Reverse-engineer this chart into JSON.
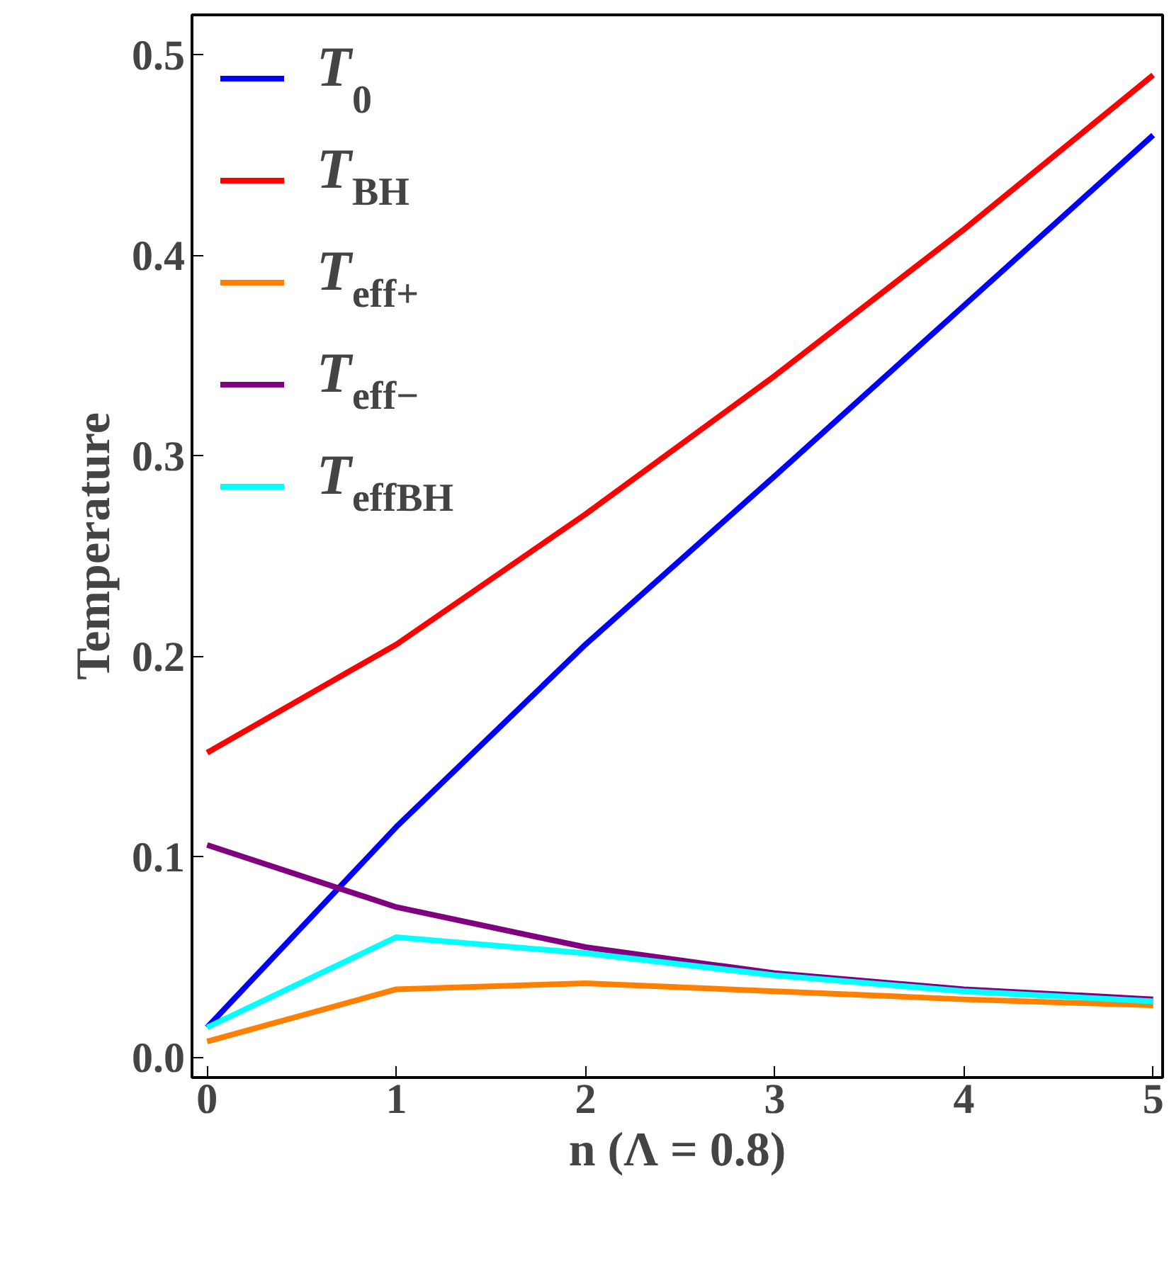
{
  "chart_data": {
    "type": "line",
    "xlabel": "n (Λ = 0.8)",
    "ylabel": "Temperature",
    "x": [
      0,
      1,
      2,
      3,
      4,
      5
    ],
    "series": [
      {
        "name": "T$_{0}$",
        "color": "#0000ff",
        "values": [
          0.015,
          0.115,
          0.206,
          0.29,
          0.375,
          0.46
        ]
      },
      {
        "name": "T$_{BH}$",
        "color": "#ff0000",
        "values": [
          0.152,
          0.206,
          0.271,
          0.34,
          0.413,
          0.49
        ]
      },
      {
        "name": "T$_{eff+}$",
        "color": "#ff8000",
        "values": [
          0.008,
          0.034,
          0.037,
          0.033,
          0.029,
          0.026
        ]
      },
      {
        "name": "T$_{eff−}$",
        "color": "#800080",
        "values": [
          0.106,
          0.075,
          0.055,
          0.042,
          0.034,
          0.029
        ]
      },
      {
        "name": "T$_{effBH}$",
        "color": "#00ffff",
        "values": [
          0.015,
          0.06,
          0.052,
          0.041,
          0.033,
          0.028
        ]
      }
    ],
    "xlim": [
      -0.08,
      5.05
    ],
    "ylim": [
      -0.01,
      0.52
    ],
    "xticks": [
      0,
      1,
      2,
      3,
      4,
      5
    ],
    "yticks": [
      {
        "value": 0,
        "label": "0.0"
      },
      0.1,
      0.2,
      0.3,
      0.4,
      0.5
    ],
    "grid": false,
    "legend": "top left",
    "line_style": "solid",
    "marker": "none"
  }
}
